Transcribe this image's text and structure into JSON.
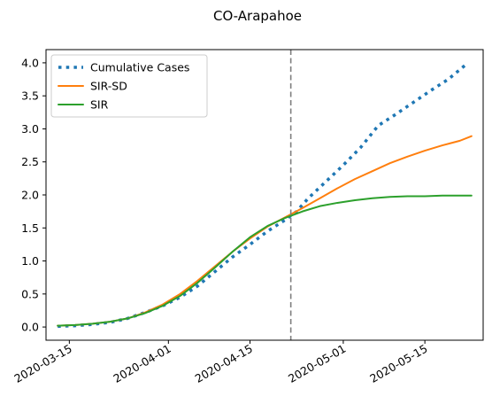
{
  "chart_data": {
    "type": "line",
    "title": "CO-Arapahoe",
    "xlabel": "",
    "ylabel": "",
    "x_axis_type": "date",
    "xlim": [
      "2020-03-11",
      "2020-05-25"
    ],
    "ylim": [
      -0.2,
      4.2
    ],
    "x_ticks": [
      "2020-03-15",
      "2020-04-01",
      "2020-04-15",
      "2020-05-01",
      "2020-05-15"
    ],
    "y_ticks": [
      "0.0",
      "0.5",
      "1.0",
      "1.5",
      "2.0",
      "2.5",
      "3.0",
      "3.5",
      "4.0"
    ],
    "grid": false,
    "legend_position": "top-left",
    "vertical_line": {
      "x": "2020-04-22",
      "style": "dashed",
      "color": "#7f7f7f"
    },
    "series": [
      {
        "name": "Cumulative Cases",
        "color": "#1f77b4",
        "style": "dotted",
        "points": [
          [
            "2020-03-13",
            0.01
          ],
          [
            "2020-03-16",
            0.02
          ],
          [
            "2020-03-19",
            0.04
          ],
          [
            "2020-03-22",
            0.07
          ],
          [
            "2020-03-25",
            0.13
          ],
          [
            "2020-03-28",
            0.22
          ],
          [
            "2020-03-31",
            0.32
          ],
          [
            "2020-04-03",
            0.45
          ],
          [
            "2020-04-06",
            0.62
          ],
          [
            "2020-04-09",
            0.84
          ],
          [
            "2020-04-12",
            1.06
          ],
          [
            "2020-04-15",
            1.25
          ],
          [
            "2020-04-18",
            1.45
          ],
          [
            "2020-04-21",
            1.62
          ],
          [
            "2020-04-23",
            1.75
          ],
          [
            "2020-04-25",
            1.95
          ],
          [
            "2020-04-28",
            2.2
          ],
          [
            "2020-05-01",
            2.45
          ],
          [
            "2020-05-04",
            2.72
          ],
          [
            "2020-05-07",
            3.05
          ],
          [
            "2020-05-10",
            3.22
          ],
          [
            "2020-05-13",
            3.4
          ],
          [
            "2020-05-16",
            3.58
          ],
          [
            "2020-05-19",
            3.75
          ],
          [
            "2020-05-22",
            3.97
          ]
        ]
      },
      {
        "name": "SIR-SD",
        "color": "#ff7f0e",
        "style": "solid",
        "points": [
          [
            "2020-03-13",
            0.02
          ],
          [
            "2020-03-16",
            0.03
          ],
          [
            "2020-03-19",
            0.05
          ],
          [
            "2020-03-22",
            0.08
          ],
          [
            "2020-03-25",
            0.13
          ],
          [
            "2020-03-28",
            0.22
          ],
          [
            "2020-03-31",
            0.34
          ],
          [
            "2020-04-03",
            0.5
          ],
          [
            "2020-04-06",
            0.7
          ],
          [
            "2020-04-09",
            0.92
          ],
          [
            "2020-04-12",
            1.14
          ],
          [
            "2020-04-15",
            1.34
          ],
          [
            "2020-04-18",
            1.52
          ],
          [
            "2020-04-21",
            1.66
          ],
          [
            "2020-04-24",
            1.8
          ],
          [
            "2020-04-27",
            1.95
          ],
          [
            "2020-04-30",
            2.1
          ],
          [
            "2020-05-03",
            2.24
          ],
          [
            "2020-05-06",
            2.36
          ],
          [
            "2020-05-09",
            2.48
          ],
          [
            "2020-05-12",
            2.58
          ],
          [
            "2020-05-15",
            2.67
          ],
          [
            "2020-05-18",
            2.75
          ],
          [
            "2020-05-21",
            2.82
          ],
          [
            "2020-05-23",
            2.89
          ]
        ]
      },
      {
        "name": "SIR",
        "color": "#2ca02c",
        "style": "solid",
        "points": [
          [
            "2020-03-13",
            0.02
          ],
          [
            "2020-03-16",
            0.03
          ],
          [
            "2020-03-19",
            0.05
          ],
          [
            "2020-03-22",
            0.08
          ],
          [
            "2020-03-25",
            0.13
          ],
          [
            "2020-03-28",
            0.21
          ],
          [
            "2020-03-31",
            0.32
          ],
          [
            "2020-04-03",
            0.47
          ],
          [
            "2020-04-06",
            0.67
          ],
          [
            "2020-04-09",
            0.9
          ],
          [
            "2020-04-12",
            1.14
          ],
          [
            "2020-04-15",
            1.36
          ],
          [
            "2020-04-18",
            1.53
          ],
          [
            "2020-04-21",
            1.65
          ],
          [
            "2020-04-24",
            1.75
          ],
          [
            "2020-04-27",
            1.83
          ],
          [
            "2020-04-30",
            1.88
          ],
          [
            "2020-05-03",
            1.92
          ],
          [
            "2020-05-06",
            1.95
          ],
          [
            "2020-05-09",
            1.97
          ],
          [
            "2020-05-12",
            1.98
          ],
          [
            "2020-05-15",
            1.98
          ],
          [
            "2020-05-18",
            1.99
          ],
          [
            "2020-05-21",
            1.99
          ],
          [
            "2020-05-23",
            1.99
          ]
        ]
      }
    ]
  }
}
